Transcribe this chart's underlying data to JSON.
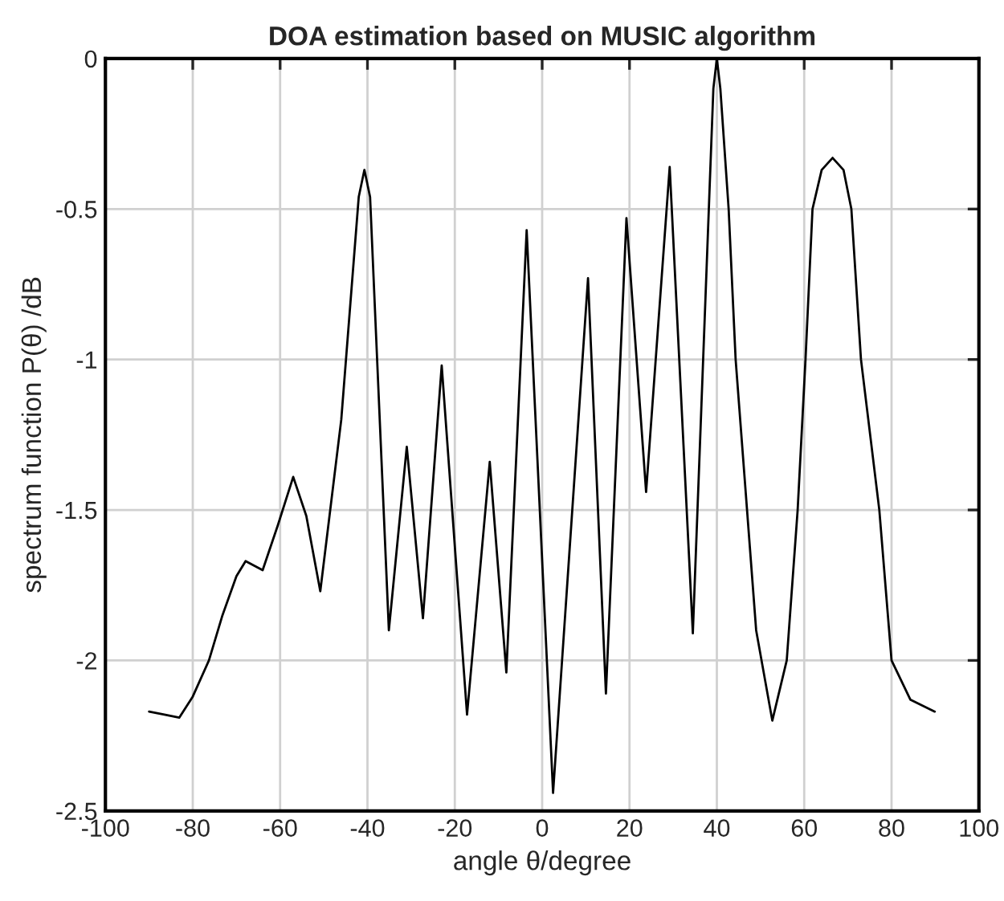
{
  "chart_data": {
    "type": "line",
    "title": "DOA estimation based on MUSIC algorithm",
    "xlabel": "angle θ/degree",
    "ylabel": "spectrum function P(θ) /dB",
    "series": [
      {
        "color": "#000000",
        "x": [
          -90,
          -86.5,
          -83.1,
          -80,
          -76.3,
          -73.2,
          -70,
          -67.9,
          -64.0,
          -60.5,
          -57.0,
          -54,
          -50.8,
          -46,
          -42,
          -40.7,
          -39.4,
          -35.1,
          -31.0,
          -27.3,
          -23.0,
          -17.2,
          -12.0,
          -8.2,
          -3.55,
          2.5,
          10.5,
          14.6,
          19.3,
          23.8,
          29.2,
          34.5,
          39.2,
          40.0,
          40.8,
          42.7,
          44.3,
          49,
          52.7,
          56.0,
          58.5,
          60.3,
          61.9,
          64,
          66.5,
          69,
          70.8,
          73.0,
          77.2,
          80.0,
          84.3,
          89.9
        ],
        "values": [
          -2.17,
          -2.18,
          -2.19,
          -2.12,
          -2.0,
          -1.85,
          -1.72,
          -1.67,
          -1.7,
          -1.55,
          -1.39,
          -1.52,
          -1.77,
          -1.2,
          -0.46,
          -0.37,
          -0.46,
          -1.9,
          -1.29,
          -1.86,
          -1.02,
          -2.18,
          -1.34,
          -2.04,
          -0.57,
          -2.44,
          -0.73,
          -2.11,
          -0.53,
          -1.44,
          -0.36,
          -1.91,
          -0.1,
          0.0,
          -0.1,
          -0.5,
          -1.0,
          -1.9,
          -2.2,
          -2.0,
          -1.5,
          -1.0,
          -0.5,
          -0.37,
          -0.33,
          -0.37,
          -0.5,
          -1.0,
          -1.5,
          -2.0,
          -2.13,
          -2.17
        ]
      }
    ],
    "xlim": [
      -100,
      100
    ],
    "xticks": [
      -100,
      -80,
      -60,
      -40,
      -20,
      0,
      20,
      40,
      60,
      80,
      100
    ],
    "ylim": [
      -2.5,
      0
    ],
    "yticks": [
      -2.5,
      -2,
      -1.5,
      -1,
      -0.5,
      0
    ],
    "grid": true,
    "marker": "none",
    "line_style": "solid"
  }
}
